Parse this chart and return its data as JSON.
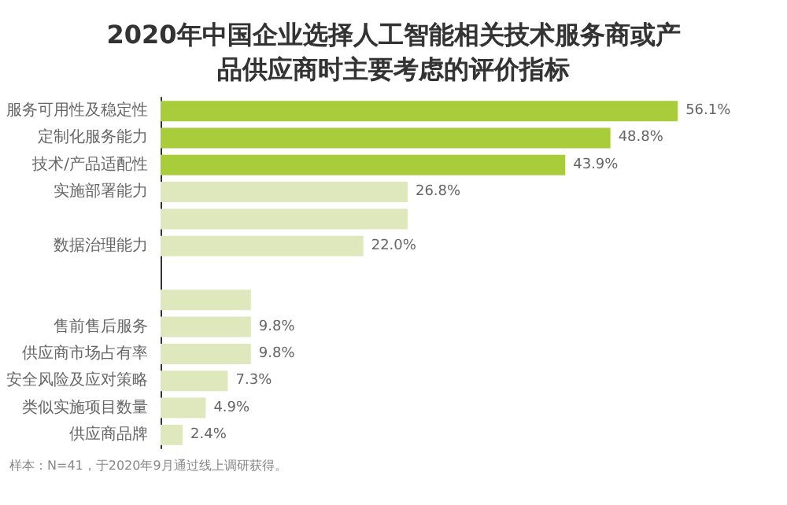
{
  "chart_data": {
    "type": "bar",
    "orientation": "horizontal",
    "title": "2020年中国企业选择人工智能相关技术服务商或产品供应商时主要考虑的评价指标",
    "categories": [
      "服务可用性及稳定性",
      "定制化服务能力",
      "技术/产品适配性",
      "实施部署能力",
      null,
      "数据治理能力",
      null,
      null,
      "售前售后服务",
      "供应商市场占有率",
      "安全风险及应对策略",
      "类似实施项目数量",
      "供应商品牌"
    ],
    "values": [
      56.1,
      48.8,
      43.9,
      26.8,
      26.8,
      22.0,
      null,
      9.8,
      9.8,
      9.8,
      7.3,
      4.9,
      2.4
    ],
    "value_labels": [
      "56.1%",
      "48.8%",
      "43.9%",
      "26.8%",
      null,
      "22.0%",
      null,
      null,
      "9.8%",
      "9.8%",
      "7.3%",
      "4.9%",
      "2.4%"
    ],
    "colors": [
      "#a8cc3a",
      "#a8cc3a",
      "#a8cc3a",
      "#dfe8bd",
      "#dfe8bd",
      "#dfe8bd",
      "#dfe8bd",
      "#dfe8bd",
      "#dfe8bd",
      "#dfe8bd",
      "#dfe8bd",
      "#dfe8bd",
      "#dfe8bd"
    ],
    "annotations": [
      "样本：N=41，于2020年9月通过线上调研获得。"
    ]
  }
}
